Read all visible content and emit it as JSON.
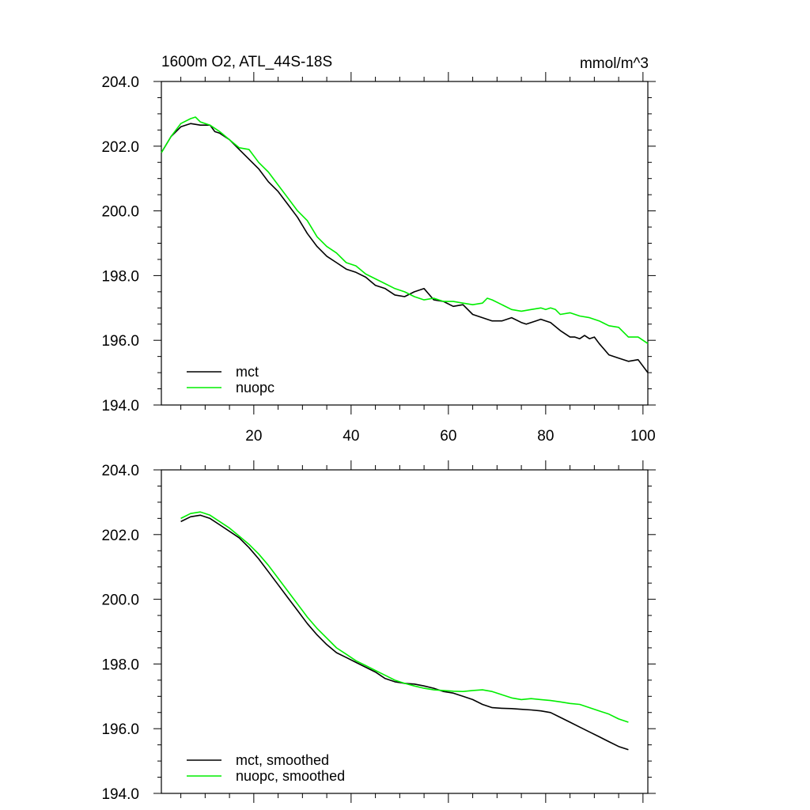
{
  "chart_data": [
    {
      "type": "line",
      "title": "1600m O2, ATL_44S-18S",
      "units": "mmol/m^3",
      "xlim": [
        1,
        101
      ],
      "ylim": [
        194.0,
        204.0
      ],
      "xticks": [
        20,
        40,
        60,
        80,
        100
      ],
      "xtick_labels": [
        "20",
        "40",
        "60",
        "80",
        "100"
      ],
      "yticks": [
        194,
        196,
        198,
        200,
        202,
        204
      ],
      "ytick_labels": [
        "194.0",
        "196.0",
        "198.0",
        "200.0",
        "202.0",
        "204.0"
      ],
      "legend": "bottom-left",
      "series": [
        {
          "name": "mct",
          "color": "#000000",
          "x": [
            1,
            3,
            5,
            7,
            9,
            11,
            12,
            13,
            15,
            17,
            19,
            21,
            23,
            25,
            27,
            29,
            31,
            33,
            35,
            37,
            39,
            41,
            43,
            45,
            47,
            49,
            51,
            53,
            55,
            57,
            59,
            61,
            63,
            65,
            67,
            69,
            71,
            73,
            75,
            76,
            77,
            78,
            79,
            80,
            81,
            83,
            85,
            86,
            87,
            88,
            89,
            90,
            91,
            93,
            95,
            97,
            99,
            101
          ],
          "y": [
            201.8,
            202.3,
            202.6,
            202.7,
            202.65,
            202.65,
            202.45,
            202.4,
            202.2,
            201.9,
            201.6,
            201.3,
            200.9,
            200.6,
            200.2,
            199.8,
            199.3,
            198.9,
            198.6,
            198.4,
            198.2,
            198.1,
            197.95,
            197.7,
            197.6,
            197.4,
            197.35,
            197.5,
            197.6,
            197.25,
            197.2,
            197.05,
            197.1,
            196.8,
            196.7,
            196.6,
            196.6,
            196.7,
            196.55,
            196.5,
            196.55,
            196.6,
            196.65,
            196.6,
            196.55,
            196.3,
            196.1,
            196.1,
            196.05,
            196.15,
            196.05,
            196.1,
            195.9,
            195.55,
            195.45,
            195.35,
            195.4,
            195.0
          ]
        },
        {
          "name": "nuopc",
          "color": "#00ee00",
          "x": [
            1,
            3,
            5,
            7,
            8,
            9,
            11,
            13,
            15,
            17,
            19,
            21,
            23,
            25,
            27,
            29,
            31,
            33,
            35,
            37,
            39,
            41,
            43,
            45,
            47,
            49,
            51,
            53,
            55,
            57,
            59,
            61,
            63,
            65,
            67,
            68,
            69,
            71,
            73,
            75,
            77,
            79,
            80,
            81,
            82,
            83,
            85,
            87,
            89,
            91,
            93,
            95,
            97,
            99,
            101
          ],
          "y": [
            201.8,
            202.3,
            202.7,
            202.85,
            202.9,
            202.75,
            202.65,
            202.45,
            202.2,
            201.95,
            201.9,
            201.5,
            201.2,
            200.8,
            200.4,
            200.0,
            199.7,
            199.2,
            198.9,
            198.7,
            198.4,
            198.3,
            198.05,
            197.9,
            197.75,
            197.6,
            197.5,
            197.35,
            197.25,
            197.3,
            197.2,
            197.2,
            197.15,
            197.1,
            197.15,
            197.3,
            197.25,
            197.1,
            196.95,
            196.9,
            196.95,
            197.0,
            196.95,
            197.0,
            196.95,
            196.8,
            196.85,
            196.75,
            196.7,
            196.6,
            196.45,
            196.4,
            196.1,
            196.1,
            195.9
          ]
        }
      ]
    },
    {
      "type": "line",
      "xlim": [
        1,
        101
      ],
      "ylim": [
        194.0,
        204.0
      ],
      "yticks": [
        194,
        196,
        198,
        200,
        202,
        204
      ],
      "ytick_labels": [
        "194.0",
        "196.0",
        "198.0",
        "200.0",
        "202.0",
        "204.0"
      ],
      "legend": "bottom-left",
      "series": [
        {
          "name": "mct, smoothed",
          "color": "#000000",
          "x": [
            5,
            7,
            9,
            11,
            13,
            15,
            17,
            19,
            21,
            23,
            25,
            27,
            29,
            31,
            33,
            35,
            37,
            39,
            41,
            43,
            45,
            47,
            49,
            51,
            53,
            55,
            57,
            59,
            61,
            63,
            65,
            67,
            69,
            71,
            73,
            75,
            77,
            79,
            81,
            83,
            85,
            87,
            89,
            91,
            93,
            95,
            97
          ],
          "y": [
            202.4,
            202.55,
            202.6,
            202.5,
            202.3,
            202.1,
            201.9,
            201.6,
            201.25,
            200.85,
            200.45,
            200.05,
            199.65,
            199.25,
            198.9,
            198.6,
            198.35,
            198.2,
            198.05,
            197.9,
            197.75,
            197.55,
            197.45,
            197.4,
            197.38,
            197.32,
            197.25,
            197.15,
            197.1,
            197.0,
            196.9,
            196.75,
            196.65,
            196.63,
            196.62,
            196.6,
            196.58,
            196.55,
            196.5,
            196.35,
            196.2,
            196.05,
            195.9,
            195.75,
            195.6,
            195.45,
            195.35
          ]
        },
        {
          "name": "nuopc, smoothed",
          "color": "#00ee00",
          "x": [
            5,
            7,
            9,
            11,
            13,
            15,
            17,
            19,
            21,
            23,
            25,
            27,
            29,
            31,
            33,
            35,
            37,
            39,
            41,
            43,
            45,
            47,
            49,
            51,
            53,
            55,
            57,
            59,
            61,
            63,
            65,
            67,
            69,
            71,
            73,
            75,
            77,
            79,
            81,
            83,
            85,
            87,
            89,
            91,
            93,
            95,
            97
          ],
          "y": [
            202.5,
            202.65,
            202.7,
            202.6,
            202.4,
            202.2,
            201.95,
            201.7,
            201.4,
            201.05,
            200.65,
            200.25,
            199.85,
            199.45,
            199.1,
            198.8,
            198.5,
            198.3,
            198.1,
            197.95,
            197.8,
            197.65,
            197.5,
            197.4,
            197.32,
            197.25,
            197.2,
            197.18,
            197.16,
            197.15,
            197.18,
            197.2,
            197.15,
            197.05,
            196.95,
            196.9,
            196.93,
            196.9,
            196.87,
            196.83,
            196.78,
            196.75,
            196.65,
            196.55,
            196.45,
            196.3,
            196.2
          ]
        }
      ]
    }
  ]
}
